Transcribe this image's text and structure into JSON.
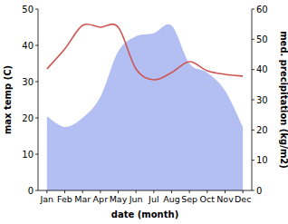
{
  "chart_data": {
    "type": "line",
    "xlabel": "date (month)",
    "ylabel": "max temp (C)",
    "y2label": "med. precipitation (kg/m2)",
    "categories": [
      "Jan",
      "Feb",
      "Mar",
      "Apr",
      "May",
      "Jun",
      "Jul",
      "Aug",
      "Sep",
      "Oct",
      "Nov",
      "Dec"
    ],
    "ylim": [
      0,
      50
    ],
    "yticks": [
      0,
      10,
      20,
      30,
      40,
      50
    ],
    "y2lim": [
      0,
      60
    ],
    "y2ticks": [
      0,
      10,
      20,
      30,
      40,
      50,
      60
    ],
    "grid": false,
    "series": [
      {
        "name": "med. precipitation",
        "type": "area",
        "axis": "y2",
        "color": "#b3bff2",
        "values": [
          24.5,
          21,
          24,
          31,
          46,
          51,
          52,
          54.5,
          42,
          39,
          33,
          21
        ]
      },
      {
        "name": "max temp",
        "type": "line",
        "color": "#cd5652",
        "values": [
          33.5,
          39,
          45.5,
          45,
          45,
          33.5,
          30.5,
          32.5,
          35.5,
          33,
          32,
          31.5
        ]
      }
    ]
  }
}
